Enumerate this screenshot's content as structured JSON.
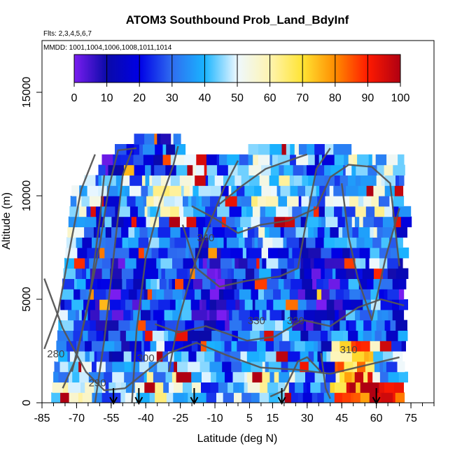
{
  "chart_data": {
    "type": "heatmap",
    "title": "ATOM3 Southbound Prob_Land_BdyInf",
    "subtitle_flights": "Flts: 2,3,4,5,6,7",
    "subtitle_dates": "MMDD: 1001,1004,1006,1008,1011,1014",
    "xlabel": "Latitude (deg N)",
    "ylabel": "Altitude (m)",
    "xlim": [
      -85,
      85
    ],
    "ylim": [
      0,
      17500
    ],
    "x_ticks": [
      -85,
      -70,
      -55,
      -40,
      -25,
      -10,
      5,
      15,
      30,
      45,
      60,
      75
    ],
    "y_ticks": [
      0,
      5000,
      10000,
      15000
    ],
    "colorbar": {
      "ticks": [
        0,
        10,
        20,
        30,
        40,
        50,
        60,
        70,
        80,
        90,
        100
      ],
      "range": [
        0,
        100
      ],
      "colors": [
        "#7a1df0",
        "#0a0aa8",
        "#0000e6",
        "#2f6df0",
        "#19b4ff",
        "#eef8ff",
        "#fff4b0",
        "#ffe433",
        "#ff8c00",
        "#ff1a00",
        "#b00012"
      ]
    },
    "theta_contours": [
      "280",
      "290",
      "300",
      "310",
      "320",
      "330",
      "340"
    ],
    "flight_track_latitudes": [
      -54,
      -43,
      -19,
      19,
      60
    ],
    "grid": false
  }
}
